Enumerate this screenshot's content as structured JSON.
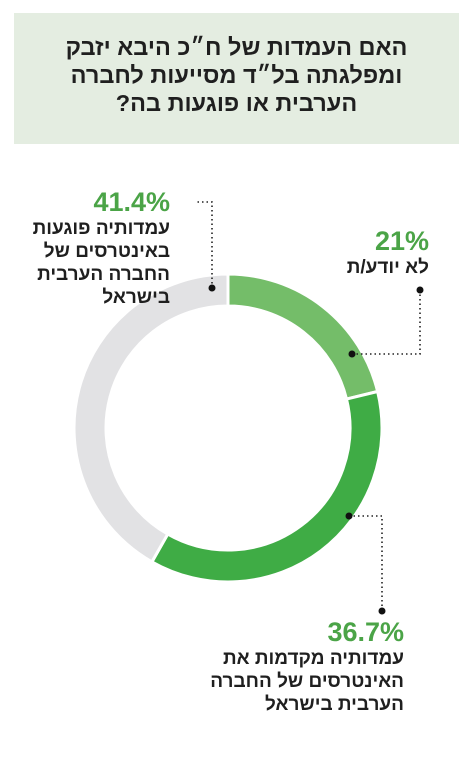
{
  "title": "האם העמדות של ח״כ היבא יזבק\nומפלגתה בל״ד מסייעות לחברה\nהערבית או פוגעות בה?",
  "chart_data": {
    "type": "pie",
    "donut": true,
    "title": "האם העמדות של ח״כ היבא יזבק ומפלגתה בל״ד מסייעות לחברה הערבית או פוגעות בה?",
    "slices": [
      {
        "pct_label": "21%",
        "label": "לא יודע/ת",
        "value": 21,
        "color": "#74bd69"
      },
      {
        "pct_label": "36.7%",
        "label": "עמדותיה מקדמות את\nהאינטרסים של החברה\nהערבית בישראל",
        "value": 36.7,
        "color": "#3fac45"
      },
      {
        "pct_label": "41.4%",
        "label": "עמדותיה פוגעות\nבאינטרסים של\nהחברה הערבית\nבישראל",
        "value": 41.4,
        "color": "#e2e2e4"
      }
    ]
  }
}
